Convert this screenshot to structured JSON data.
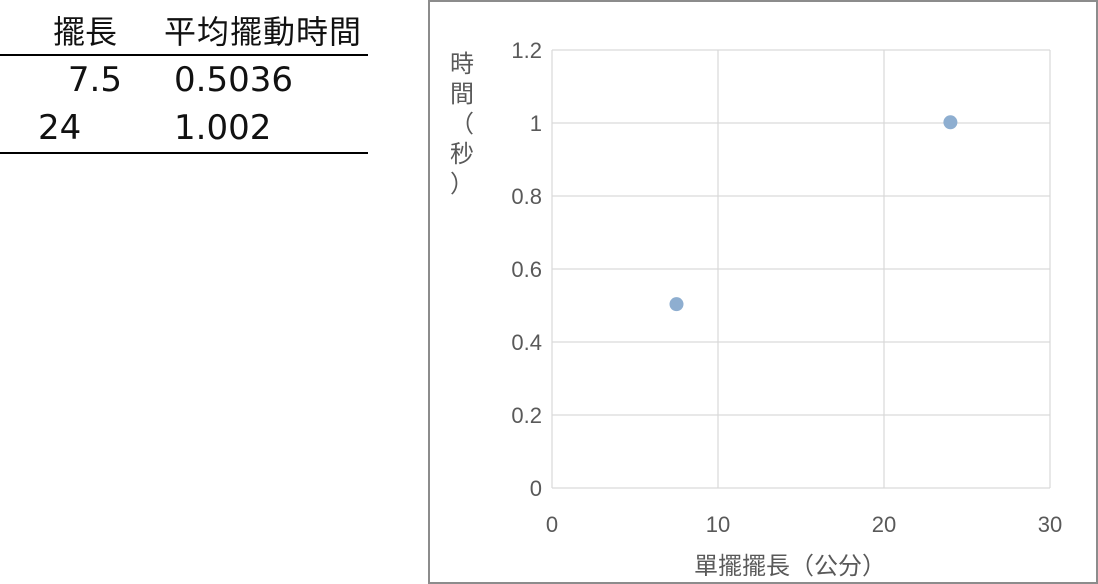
{
  "table": {
    "headers": [
      "擺長",
      "平均擺動時間"
    ],
    "rows": [
      [
        "7.5",
        "0.5036"
      ],
      [
        "24",
        "1.002"
      ]
    ]
  },
  "chart_data": {
    "type": "scatter",
    "x": [
      7.5,
      24
    ],
    "y": [
      0.5036,
      1.002
    ],
    "xlabel": "單擺擺長（公分）",
    "ylabel": "時間（秒）",
    "xlim": [
      0,
      30
    ],
    "ylim": [
      0,
      1.2
    ],
    "xticks": [
      "0",
      "10",
      "20",
      "30"
    ],
    "yticks": [
      "0",
      "0.2",
      "0.4",
      "0.6",
      "0.8",
      "1",
      "1.2"
    ],
    "grid": true,
    "point_color": "#8eaed0"
  }
}
